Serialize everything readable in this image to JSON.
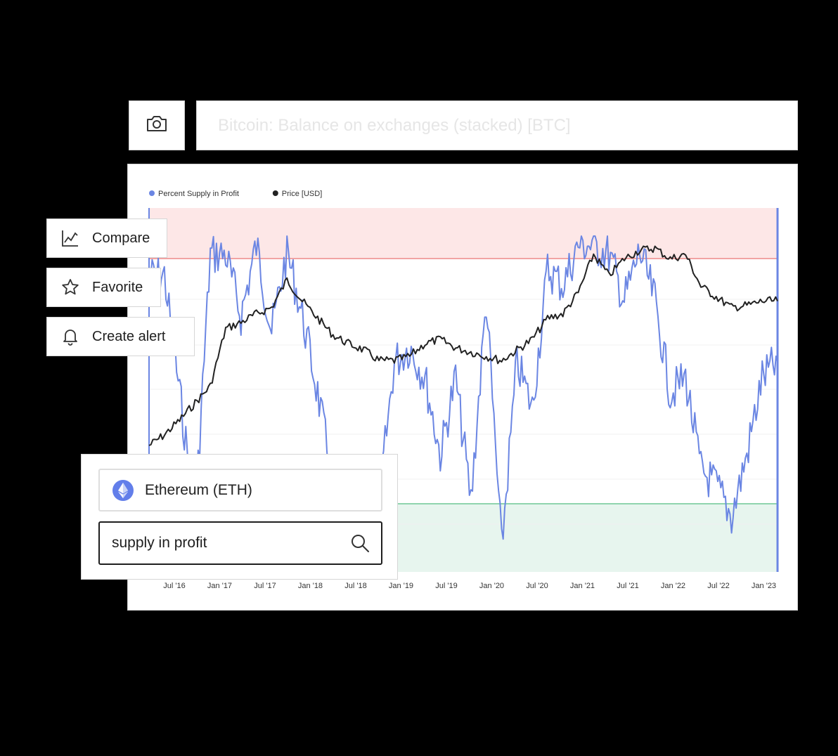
{
  "header": {
    "title": "Bitcoin: Balance on exchanges (stacked) [BTC]",
    "camera_icon": "camera-icon"
  },
  "actions": [
    {
      "label": "Compare",
      "icon": "line-chart-icon"
    },
    {
      "label": "Favorite",
      "icon": "star-icon"
    },
    {
      "label": "Create alert",
      "icon": "bell-icon"
    }
  ],
  "search_panel": {
    "asset": {
      "label": "Ethereum (ETH)",
      "icon": "ethereum-icon"
    },
    "query": "supply in profit",
    "search_icon": "search-icon"
  },
  "chart_data": {
    "type": "line",
    "legend": {
      "position": "top-left"
    },
    "x_ticks": [
      "Jul '16",
      "Jan '17",
      "Jul '17",
      "Jan '18",
      "Jul '18",
      "Jan '19",
      "Jul '19",
      "Jan '20",
      "Jul '20",
      "Jan '21",
      "Jul '21",
      "Jan '22",
      "Jul '22",
      "Jan '23"
    ],
    "x": [
      "2016-03",
      "2016-06",
      "2016-09",
      "2016-12",
      "2017-02",
      "2017-04",
      "2017-06",
      "2017-08",
      "2017-10",
      "2017-12",
      "2018-02",
      "2018-04",
      "2018-06",
      "2018-08",
      "2018-10",
      "2018-12",
      "2019-02",
      "2019-04",
      "2019-06",
      "2019-08",
      "2019-10",
      "2019-12",
      "2020-02",
      "2020-03",
      "2020-05",
      "2020-07",
      "2020-09",
      "2020-11",
      "2021-01",
      "2021-03",
      "2021-05",
      "2021-07",
      "2021-09",
      "2021-11",
      "2022-01",
      "2022-03",
      "2022-05",
      "2022-07",
      "2022-09",
      "2022-11",
      "2023-01",
      "2023-03"
    ],
    "series": [
      {
        "name": "Percent Supply in Profit",
        "color": "#6b86e3",
        "values": [
          88,
          88,
          50,
          10,
          95,
          95,
          75,
          98,
          70,
          96,
          75,
          50,
          20,
          8,
          25,
          15,
          60,
          65,
          55,
          30,
          55,
          15,
          80,
          0,
          60,
          45,
          90,
          85,
          98,
          98,
          95,
          80,
          96,
          80,
          50,
          55,
          25,
          20,
          10,
          30,
          55,
          60
        ]
      },
      {
        "name": "Price [USD]",
        "color": "#222222",
        "values": [
          0,
          5,
          12,
          20,
          28,
          55,
          58,
          62,
          65,
          78,
          68,
          60,
          52,
          48,
          45,
          40,
          40,
          42,
          48,
          50,
          46,
          44,
          42,
          40,
          45,
          50,
          60,
          62,
          72,
          90,
          80,
          88,
          92,
          93,
          88,
          90,
          75,
          70,
          65,
          66,
          68,
          68
        ]
      }
    ],
    "bands": [
      {
        "label": "high",
        "color": "#fde7e7",
        "line": "#f2a3a3"
      },
      {
        "label": "low",
        "color": "#e7f5ee",
        "line": "#8fd4ae"
      }
    ]
  }
}
